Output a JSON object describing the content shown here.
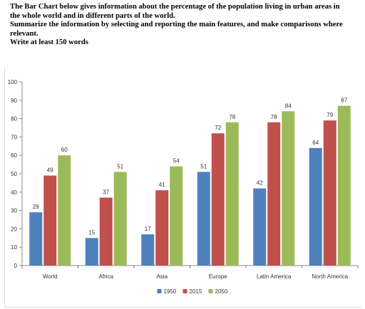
{
  "prompt": {
    "lines": [
      "The Bar Chart below gives information about the percentage of the population living in urban areas in",
      "the whole world and in different parts of the world.",
      "Summarize the information by selecting and reporting the main features, and make comparisons where",
      "relevant.",
      "Write at least 150 words"
    ]
  },
  "chart_data": {
    "type": "bar",
    "categories": [
      "World",
      "Africa",
      "Asia",
      "Europe",
      "Latin America",
      "North America"
    ],
    "series": [
      {
        "name": "1950",
        "color": "#4f81bd",
        "values": [
          29,
          15,
          17,
          51,
          42,
          64
        ]
      },
      {
        "name": "2015",
        "color": "#c0504d",
        "values": [
          49,
          37,
          41,
          72,
          78,
          79
        ]
      },
      {
        "name": "2050",
        "color": "#9bbb59",
        "values": [
          60,
          51,
          54,
          78,
          84,
          87
        ]
      }
    ],
    "ylim": [
      0,
      100
    ],
    "yticks": [
      0,
      10,
      20,
      30,
      40,
      50,
      60,
      70,
      80,
      90,
      100
    ],
    "grid": false,
    "legend_position": "bottom",
    "data_labels": true
  }
}
